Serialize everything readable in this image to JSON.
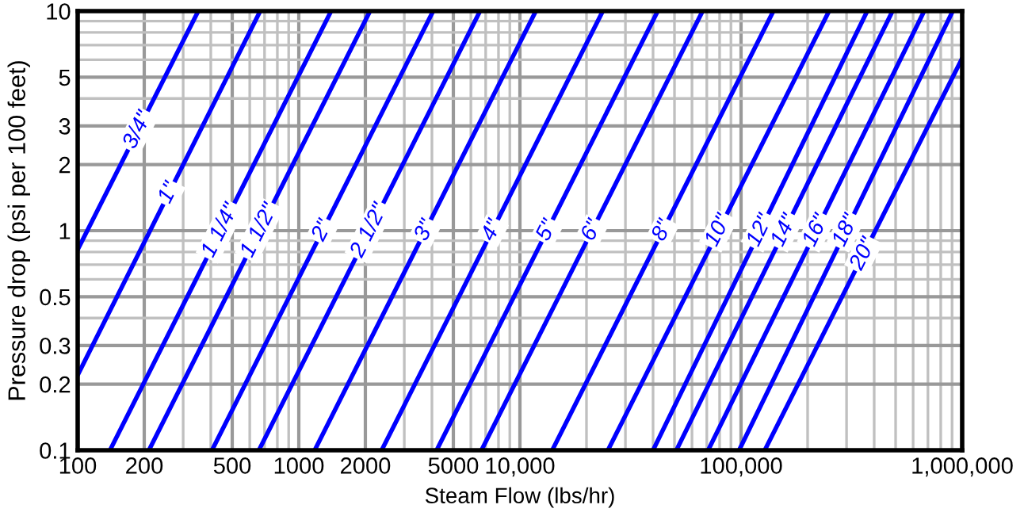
{
  "chart_data": {
    "type": "line",
    "xlabel": "Steam Flow (lbs/hr)",
    "ylabel": "Pressure drop (psi per 100 feet)",
    "log": "xy",
    "grid": true,
    "marker": "none",
    "line_style": "solid",
    "legend": false,
    "xlim": [
      100,
      1000000
    ],
    "ylim": [
      0.1,
      10
    ],
    "xticks": [
      100,
      200,
      500,
      1000,
      2000,
      5000,
      {
        "value": 10000,
        "label": "10,000"
      },
      {
        "value": 100000,
        "label": "100,000"
      },
      {
        "value": 1000000,
        "label": "1,000,000"
      }
    ],
    "yticks": [
      0.1,
      0.2,
      0.3,
      0.5,
      1,
      2,
      3,
      5,
      10
    ],
    "series": [
      {
        "name": "3/4\"",
        "color": "#0000ff",
        "x": [
          100,
          351
        ],
        "values": [
          0.82,
          10
        ]
      },
      {
        "name": "1\"",
        "color": "#0000ff",
        "x": [
          100,
          669
        ],
        "values": [
          0.22,
          10
        ]
      },
      {
        "name": "1 1/4\"",
        "color": "#0000ff",
        "x": [
          140,
          1400
        ],
        "values": [
          0.1,
          10
        ]
      },
      {
        "name": "1 1/2\"",
        "color": "#0000ff",
        "x": [
          210,
          2100
        ],
        "values": [
          0.1,
          10
        ]
      },
      {
        "name": "2\"",
        "color": "#0000ff",
        "x": [
          405,
          4050
        ],
        "values": [
          0.1,
          10
        ]
      },
      {
        "name": "2 1/2\"",
        "color": "#0000ff",
        "x": [
          660,
          6600
        ],
        "values": [
          0.1,
          10
        ]
      },
      {
        "name": "3\"",
        "color": "#0000ff",
        "x": [
          1180,
          11800
        ],
        "values": [
          0.1,
          10
        ]
      },
      {
        "name": "4\"",
        "color": "#0000ff",
        "x": [
          2370,
          23700
        ],
        "values": [
          0.1,
          10
        ]
      },
      {
        "name": "5\"",
        "color": "#0000ff",
        "x": [
          4200,
          42000
        ],
        "values": [
          0.1,
          10
        ]
      },
      {
        "name": "6\"",
        "color": "#0000ff",
        "x": [
          6700,
          67000
        ],
        "values": [
          0.1,
          10
        ]
      },
      {
        "name": "8\"",
        "color": "#0000ff",
        "x": [
          14000,
          140000
        ],
        "values": [
          0.1,
          10
        ]
      },
      {
        "name": "10\"",
        "color": "#0000ff",
        "x": [
          25000,
          250000
        ],
        "values": [
          0.1,
          10
        ]
      },
      {
        "name": "12\"",
        "color": "#0000ff",
        "x": [
          40000,
          372000
        ],
        "values": [
          0.1,
          10
        ]
      },
      {
        "name": "14\"",
        "color": "#0000ff",
        "x": [
          51000,
          484000
        ],
        "values": [
          0.1,
          10
        ]
      },
      {
        "name": "16\"",
        "color": "#0000ff",
        "x": [
          71000,
          673000
        ],
        "values": [
          0.1,
          10
        ]
      },
      {
        "name": "18\"",
        "color": "#0000ff",
        "x": [
          98000,
          906000
        ],
        "values": [
          0.1,
          10
        ]
      },
      {
        "name": "20\"",
        "color": "#0000ff",
        "x": [
          128000,
          1000000
        ],
        "values": [
          0.1,
          6.1
        ]
      }
    ]
  }
}
